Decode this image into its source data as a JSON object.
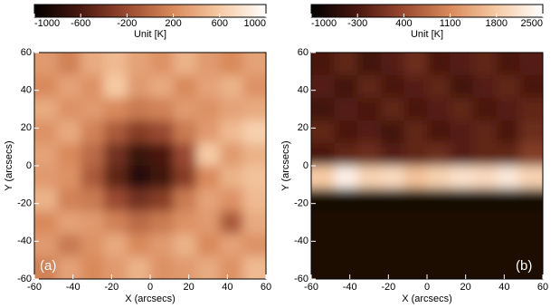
{
  "chart_data": [
    {
      "type": "heatmap",
      "panel_label": "(a)",
      "x_label": "X (arcsecs)",
      "y_label": "Y (arcsecs)",
      "colorbar_label": "Unit [K]",
      "colormap": [
        "#000000",
        "#4a1810",
        "#9a4a30",
        "#d98a5c",
        "#f6caa4",
        "#ffffff"
      ],
      "clim": [
        -1000,
        1000
      ],
      "cticks": [
        -1000,
        -600,
        -200,
        200,
        600,
        1000
      ],
      "xlim": [
        -60,
        60
      ],
      "ylim": [
        -60,
        60
      ],
      "xticks": [
        -60,
        -40,
        -20,
        0,
        20,
        40,
        60
      ],
      "yticks": [
        -60,
        -40,
        -20,
        0,
        20,
        40,
        60
      ],
      "x": [
        -54,
        -42,
        -30,
        -18,
        -6,
        6,
        18,
        30,
        42,
        54
      ],
      "y": [
        54,
        42,
        30,
        18,
        6,
        -6,
        -18,
        -30,
        -42,
        -54
      ],
      "z": [
        [
          300,
          150,
          400,
          500,
          350,
          250,
          450,
          300,
          200,
          350
        ],
        [
          200,
          350,
          250,
          600,
          300,
          400,
          200,
          350,
          450,
          250
        ],
        [
          400,
          250,
          300,
          200,
          100,
          150,
          300,
          250,
          350,
          400
        ],
        [
          250,
          400,
          150,
          -100,
          -300,
          -200,
          100,
          300,
          500,
          650
        ],
        [
          350,
          200,
          0,
          -400,
          -700,
          -600,
          -200,
          600,
          300,
          450
        ],
        [
          300,
          250,
          -100,
          -500,
          -800,
          -650,
          -300,
          200,
          450,
          550
        ],
        [
          450,
          150,
          100,
          -200,
          -400,
          -300,
          100,
          350,
          250,
          500
        ],
        [
          200,
          350,
          300,
          150,
          0,
          100,
          250,
          300,
          -100,
          400
        ],
        [
          300,
          100,
          250,
          400,
          200,
          300,
          450,
          200,
          350,
          250
        ],
        [
          150,
          350,
          200,
          300,
          450,
          250,
          300,
          400,
          250,
          500
        ]
      ]
    },
    {
      "type": "heatmap",
      "panel_label": "(b)",
      "x_label": "X (arcsecs)",
      "y_label": "Y (arcsecs)",
      "colorbar_label": "Unit [K]",
      "colormap": [
        "#000000",
        "#4a1810",
        "#9a4a30",
        "#d98a5c",
        "#f6caa4",
        "#ffffff"
      ],
      "clim": [
        -1000,
        2500
      ],
      "cticks": [
        -1000,
        -300,
        400,
        1100,
        1800,
        2500
      ],
      "xlim": [
        -60,
        60
      ],
      "ylim": [
        -60,
        60
      ],
      "xticks": [
        -60,
        -40,
        -20,
        0,
        20,
        40,
        60
      ],
      "yticks": [
        -60,
        -40,
        -20,
        0,
        20,
        40,
        60
      ],
      "x": [
        -54,
        -42,
        -30,
        -18,
        -6,
        6,
        18,
        30,
        42,
        54
      ],
      "y": [
        54,
        42,
        30,
        18,
        6,
        -6,
        -18,
        -30,
        -42,
        -54
      ],
      "z": [
        [
          -300,
          -100,
          -400,
          -200,
          0,
          -300,
          -200,
          -100,
          -300,
          -200
        ],
        [
          -200,
          -400,
          -100,
          -300,
          -200,
          -100,
          -400,
          -200,
          -100,
          -300
        ],
        [
          -400,
          -200,
          -300,
          -100,
          -300,
          -200,
          -100,
          -300,
          -200,
          -100
        ],
        [
          -100,
          -300,
          -200,
          -400,
          -100,
          -300,
          -200,
          -100,
          -300,
          0
        ],
        [
          -300,
          -100,
          0,
          -200,
          -100,
          0,
          -200,
          -100,
          -100,
          200
        ],
        [
          1800,
          2300,
          1900,
          2000,
          1700,
          1900,
          2100,
          2000,
          2200,
          1900
        ],
        [
          -800,
          -800,
          -800,
          -800,
          -800,
          -800,
          -800,
          -800,
          -800,
          -800
        ],
        [
          -750,
          -750,
          -750,
          -750,
          -750,
          -750,
          -750,
          -750,
          -750,
          -750
        ],
        [
          -750,
          -750,
          -750,
          -750,
          -750,
          -750,
          -750,
          -750,
          -750,
          -750
        ],
        [
          -750,
          -750,
          -750,
          -750,
          -750,
          -750,
          -750,
          -750,
          -750,
          -750
        ]
      ]
    }
  ]
}
